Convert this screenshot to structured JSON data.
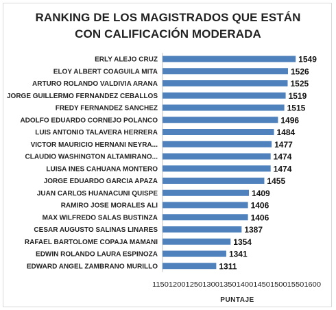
{
  "chart_data": {
    "type": "bar",
    "orientation": "horizontal",
    "title_lines": [
      "RANKING DE LOS MAGISTRADOS QUE ESTÁN",
      "CON CALIFICACIÓN MODERADA"
    ],
    "xlabel": "PUNTAJE",
    "ylabel": "",
    "xlim": [
      1150,
      1600
    ],
    "ticks": [
      1150,
      1200,
      1250,
      1300,
      1350,
      1400,
      1450,
      1500,
      1550,
      1600
    ],
    "tick_labels": "1150120012501300135014001450150015501600",
    "grid": false,
    "legend": "none",
    "bar_color": "#4f81bd",
    "categories": [
      "ERLY ALEJO CRUZ",
      "ELOY ALBERT COAGUILA MITA",
      "ARTURO ROLANDO VALDIVIA ARANA",
      "JORGE GUILLERMO FERNANDEZ CEBALLOS",
      "FREDY FERNANDEZ SANCHEZ",
      "ADOLFO EDUARDO CORNEJO POLANCO",
      "LUIS ANTONIO TALAVERA HERRERA",
      "VICTOR MAURICIO HERNANI NEYRA...",
      "CLAUDIO WASHINGTON ALTAMIRANO...",
      "LUISA INES CAHUANA MONTERO",
      "JORGE EDUARDO GARCIA APAZA",
      "JUAN CARLOS HUANACUNI QUISPE",
      "RAMIRO JOSE MORALES ALI",
      "MAX WILFREDO SALAS BUSTINZA",
      "CESAR AUGUSTO SALINAS LINARES",
      "RAFAEL BARTOLOME COPAJA MAMANI",
      "EDWIN ROLANDO LAURA ESPINOZA",
      "EDWARD ANGEL ZAMBRANO MURILLO"
    ],
    "values": [
      1549,
      1526,
      1525,
      1519,
      1515,
      1496,
      1484,
      1477,
      1474,
      1474,
      1455,
      1409,
      1406,
      1406,
      1387,
      1354,
      1341,
      1311
    ]
  }
}
